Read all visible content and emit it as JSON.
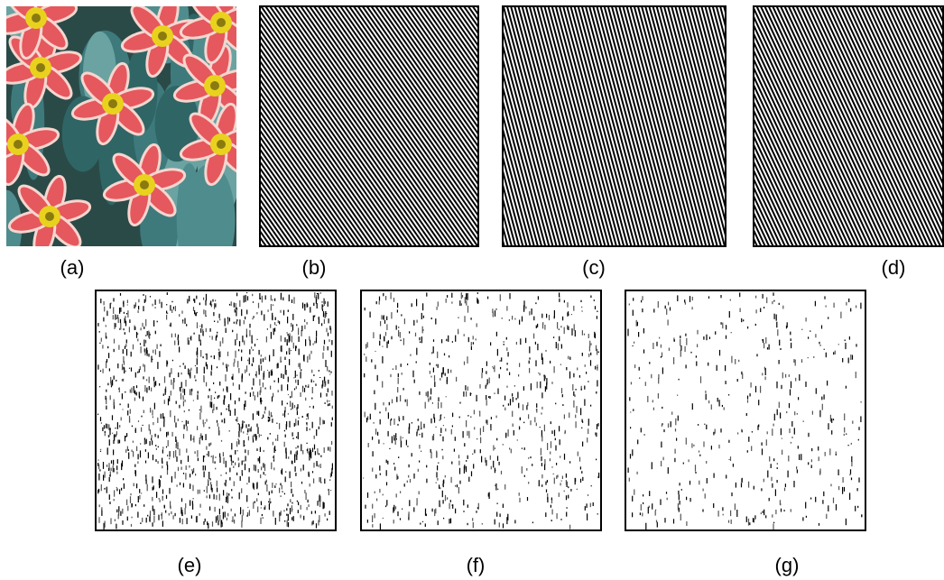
{
  "labels": [
    "(a)",
    "(b)",
    "(c)",
    "(d)",
    "(e)",
    "(f)",
    "(g)"
  ]
}
